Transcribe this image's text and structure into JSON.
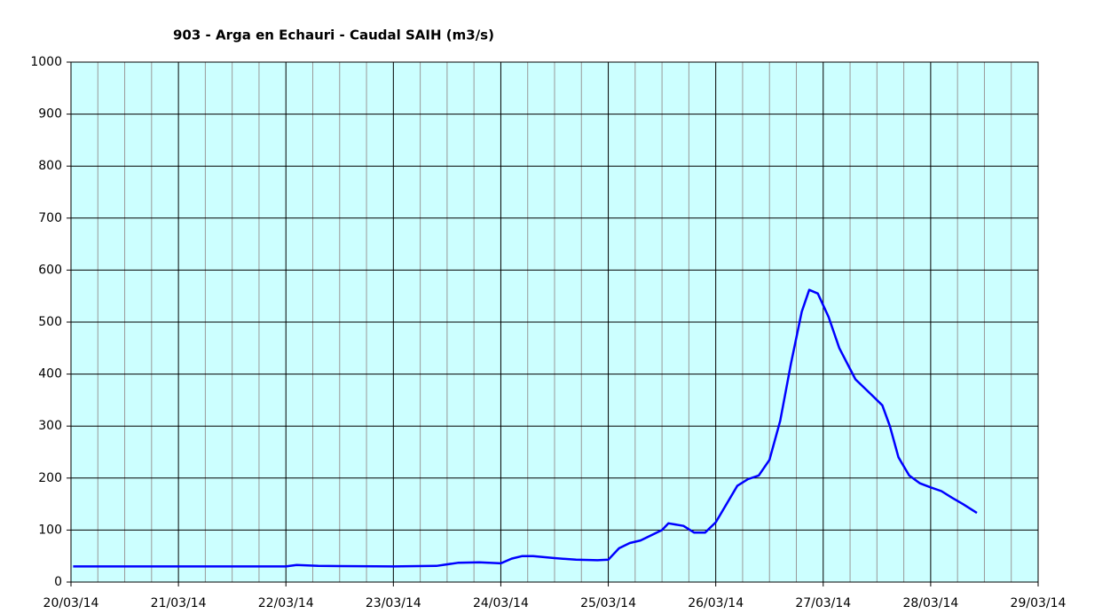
{
  "chart_data": {
    "type": "line",
    "title": "903 - Arga en Echauri - Caudal SAIH (m3/s)",
    "xlim": [
      0,
      9
    ],
    "xticks": [
      {
        "value": 0,
        "label": "20/03/14"
      },
      {
        "value": 1,
        "label": "21/03/14"
      },
      {
        "value": 2,
        "label": "22/03/14"
      },
      {
        "value": 3,
        "label": "23/03/14"
      },
      {
        "value": 4,
        "label": "24/03/14"
      },
      {
        "value": 5,
        "label": "25/03/14"
      },
      {
        "value": 6,
        "label": "26/03/14"
      },
      {
        "value": 7,
        "label": "27/03/14"
      },
      {
        "value": 8,
        "label": "28/03/14"
      },
      {
        "value": 9,
        "label": "29/03/14"
      }
    ],
    "x_minor_ticks": [
      0.25,
      0.5,
      0.75,
      1.25,
      1.5,
      1.75,
      2.25,
      2.5,
      2.75,
      3.25,
      3.5,
      3.75,
      4.25,
      4.5,
      4.75,
      5.25,
      5.5,
      5.75,
      6.25,
      6.5,
      6.75,
      7.25,
      7.5,
      7.75,
      8.25,
      8.5,
      8.75
    ],
    "ylim": [
      0,
      1000
    ],
    "yticks": [
      0,
      100,
      200,
      300,
      400,
      500,
      600,
      700,
      800,
      900,
      1000
    ],
    "grid": true,
    "background": "#ccffff",
    "series": [
      {
        "name": "Caudal SAIH",
        "color": "#0000ff",
        "x": [
          0.02,
          1,
          2,
          2.1,
          2.3,
          3,
          3.4,
          3.6,
          3.8,
          4.0,
          4.1,
          4.2,
          4.3,
          4.5,
          4.7,
          4.9,
          5.0,
          5.1,
          5.2,
          5.3,
          5.4,
          5.5,
          5.56,
          5.7,
          5.8,
          5.9,
          6.0,
          6.1,
          6.2,
          6.3,
          6.4,
          6.5,
          6.6,
          6.7,
          6.8,
          6.87,
          6.95,
          7.05,
          7.15,
          7.3,
          7.45,
          7.55,
          7.62,
          7.7,
          7.8,
          7.9,
          8.0,
          8.1,
          8.2,
          8.3,
          8.43
        ],
        "values": [
          30,
          30,
          30,
          33,
          31,
          30,
          31,
          37,
          38,
          36,
          45,
          50,
          50,
          46,
          43,
          42,
          43,
          65,
          75,
          80,
          90,
          100,
          113,
          108,
          95,
          95,
          115,
          150,
          185,
          198,
          205,
          235,
          310,
          420,
          520,
          562,
          555,
          510,
          450,
          390,
          360,
          340,
          300,
          240,
          205,
          190,
          182,
          175,
          162,
          150,
          133
        ]
      }
    ]
  }
}
